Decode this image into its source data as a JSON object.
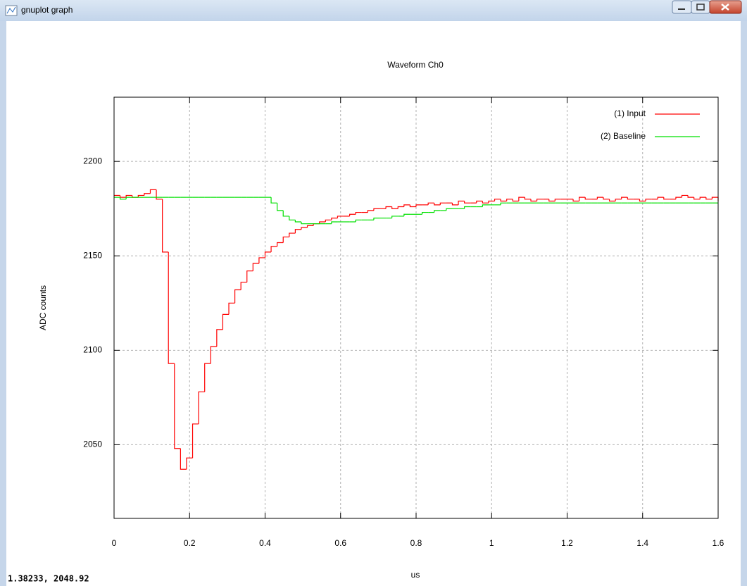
{
  "window": {
    "title": "gnuplot graph",
    "status": "1.38233, 2048.92"
  },
  "chart_data": {
    "type": "step",
    "title": "Waveform Ch0",
    "x_label": "us",
    "y_label": "ADC counts",
    "x": [
      0,
      0.016,
      0.032,
      0.048,
      0.064,
      0.08,
      0.096,
      0.112,
      0.128,
      0.144,
      0.16,
      0.176,
      0.192,
      0.208,
      0.224,
      0.24,
      0.256,
      0.272,
      0.288,
      0.304,
      0.32,
      0.336,
      0.352,
      0.368,
      0.384,
      0.4,
      0.416,
      0.432,
      0.448,
      0.464,
      0.48,
      0.496,
      0.512,
      0.528,
      0.544,
      0.56,
      0.576,
      0.592,
      0.608,
      0.624,
      0.64,
      0.656,
      0.672,
      0.688,
      0.704,
      0.72,
      0.736,
      0.752,
      0.768,
      0.784,
      0.8,
      0.816,
      0.832,
      0.848,
      0.864,
      0.88,
      0.896,
      0.912,
      0.928,
      0.944,
      0.96,
      0.976,
      0.992,
      1.008,
      1.024,
      1.04,
      1.056,
      1.072,
      1.088,
      1.104,
      1.12,
      1.136,
      1.152,
      1.168,
      1.184,
      1.2,
      1.216,
      1.232,
      1.248,
      1.264,
      1.28,
      1.296,
      1.312,
      1.328,
      1.344,
      1.36,
      1.376,
      1.392,
      1.408,
      1.424,
      1.44,
      1.456,
      1.472,
      1.488,
      1.504,
      1.52,
      1.536,
      1.552,
      1.568,
      1.584,
      1.6
    ],
    "series": [
      {
        "name": "(1) Input",
        "color": "#ff0000",
        "values": [
          2182,
          2181,
          2182,
          2181,
          2182,
          2183,
          2185,
          2180,
          2152,
          2093,
          2048,
          2037,
          2043,
          2061,
          2078,
          2093,
          2102,
          2111,
          2119,
          2125,
          2132,
          2136,
          2142,
          2146,
          2149,
          2152,
          2155,
          2157,
          2160,
          2162,
          2164,
          2165,
          2166,
          2167,
          2168,
          2169,
          2170,
          2171,
          2171,
          2172,
          2173,
          2173,
          2174,
          2175,
          2175,
          2176,
          2175,
          2176,
          2177,
          2176,
          2177,
          2177,
          2178,
          2177,
          2178,
          2178,
          2177,
          2179,
          2178,
          2178,
          2179,
          2178,
          2179,
          2180,
          2179,
          2180,
          2179,
          2181,
          2180,
          2179,
          2180,
          2180,
          2179,
          2180,
          2180,
          2180,
          2179,
          2181,
          2180,
          2180,
          2181,
          2180,
          2179,
          2180,
          2181,
          2180,
          2180,
          2179,
          2180,
          2180,
          2181,
          2180,
          2180,
          2181,
          2182,
          2181,
          2180,
          2181,
          2180,
          2181,
          2179
        ]
      },
      {
        "name": "(2) Baseline",
        "color": "#00e000",
        "values": [
          2181,
          2180,
          2181,
          2181,
          2181,
          2181,
          2181,
          2181,
          2181,
          2181,
          2181,
          2181,
          2181,
          2181,
          2181,
          2181,
          2181,
          2181,
          2181,
          2181,
          2181,
          2181,
          2181,
          2181,
          2181,
          2181,
          2178,
          2174,
          2171,
          2169,
          2168,
          2167,
          2167,
          2167,
          2167,
          2167,
          2168,
          2168,
          2168,
          2168,
          2169,
          2169,
          2169,
          2170,
          2170,
          2170,
          2171,
          2171,
          2172,
          2172,
          2172,
          2173,
          2173,
          2174,
          2174,
          2175,
          2175,
          2175,
          2176,
          2176,
          2176,
          2177,
          2177,
          2177,
          2178,
          2178,
          2178,
          2178,
          2178,
          2178,
          2178,
          2178,
          2178,
          2178,
          2178,
          2178,
          2178,
          2178,
          2178,
          2178,
          2178,
          2178,
          2178,
          2178,
          2178,
          2178,
          2178,
          2178,
          2178,
          2178,
          2178,
          2178,
          2178,
          2178,
          2178,
          2178,
          2178,
          2178,
          2178,
          2178,
          2178
        ]
      }
    ],
    "xlim": [
      0,
      1.6
    ],
    "xticks": [
      0,
      0.2,
      0.4,
      0.6,
      0.8,
      1,
      1.2,
      1.4,
      1.6
    ],
    "ylim": [
      2011,
      2234
    ],
    "yticks": [
      2050,
      2100,
      2150,
      2200
    ],
    "grid": true,
    "legend": "top-right"
  }
}
